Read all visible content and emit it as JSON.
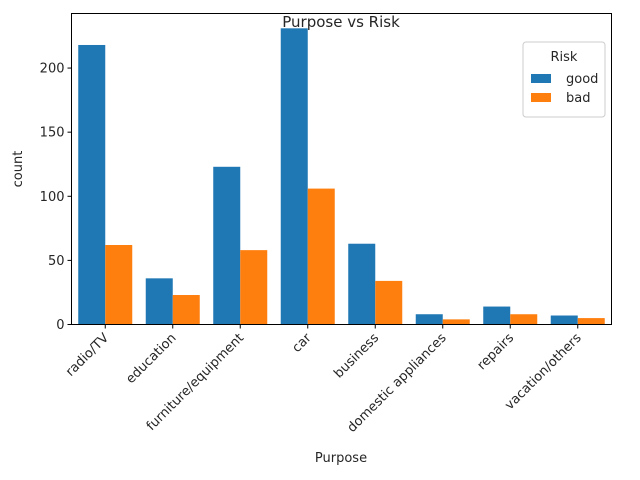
{
  "chart_data": {
    "type": "bar",
    "title": "Purpose vs Risk",
    "xlabel": "Purpose",
    "ylabel": "count",
    "categories": [
      "radio/TV",
      "education",
      "furniture/equipment",
      "car",
      "business",
      "domestic appliances",
      "repairs",
      "vacation/others"
    ],
    "series": [
      {
        "name": "good",
        "values": [
          218,
          36,
          123,
          231,
          63,
          8,
          14,
          7
        ]
      },
      {
        "name": "bad",
        "values": [
          62,
          23,
          58,
          106,
          34,
          4,
          8,
          5
        ]
      }
    ],
    "ylim": [
      0,
      242.55
    ],
    "yticks": [
      0,
      50,
      100,
      150,
      200
    ],
    "legend": {
      "title": "Risk",
      "placement": "top-right"
    },
    "colors": {
      "good": "#1f77b4",
      "bad": "#ff7f0e"
    },
    "grid": false
  }
}
